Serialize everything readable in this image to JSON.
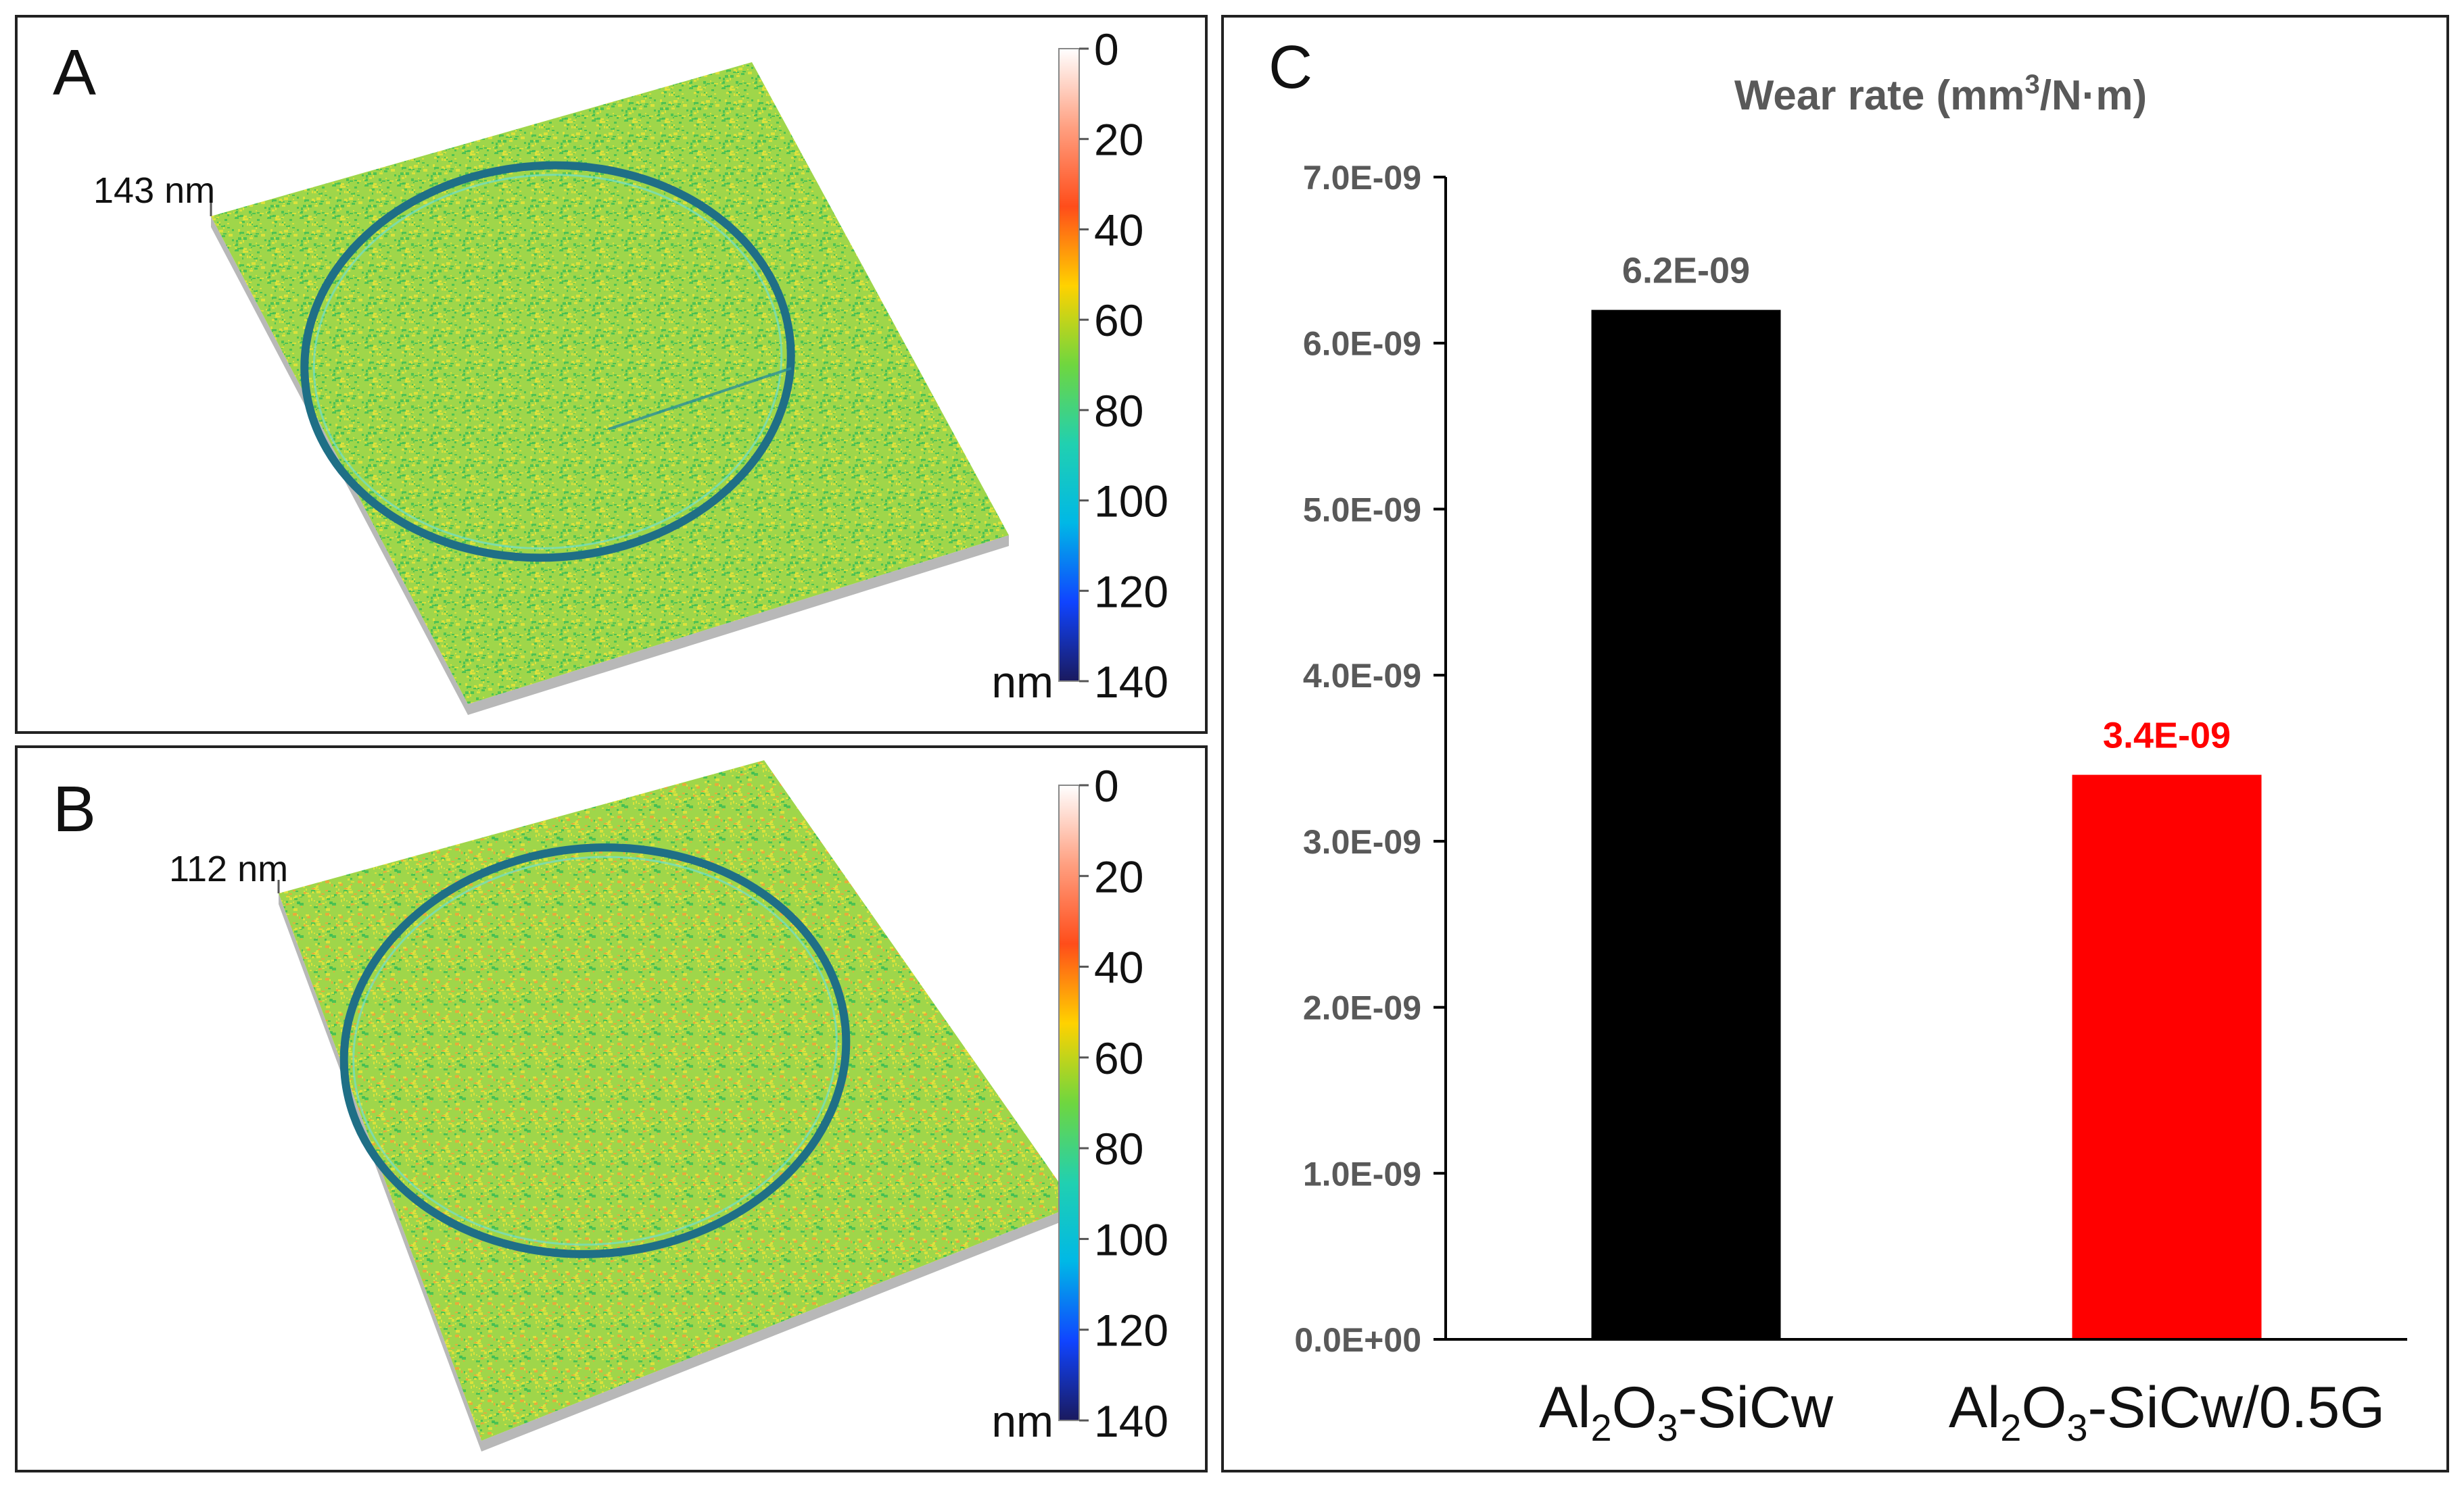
{
  "panels": {
    "a": {
      "letter": "A",
      "height_label": "143 nm"
    },
    "b": {
      "letter": "B",
      "height_label": "112 nm"
    },
    "colorbar": {
      "ticks": [
        "0",
        "20",
        "40",
        "60",
        "80",
        "100",
        "120",
        "140"
      ],
      "unit": "nm",
      "colors": [
        "#ffffff",
        "#ff9f80",
        "#ff4d1a",
        "#ffd200",
        "#6fd63f",
        "#21d0b0",
        "#00b8e6",
        "#1044ff",
        "#1a1a5e"
      ]
    },
    "surface_colors": {
      "base": "#9fd64a",
      "yellow": "#e6e33a",
      "green": "#3fbf55",
      "orange": "#f2a33a",
      "ring": "#1f6f86"
    }
  },
  "chart_data": {
    "type": "bar",
    "panel_letter": "C",
    "title_pre": "Wear rate (mm",
    "title_sup": "3",
    "title_post": "/N·m)",
    "ylim": [
      0,
      7e-09
    ],
    "yticks": [
      0,
      1e-09,
      2e-09,
      3e-09,
      4e-09,
      5e-09,
      6e-09,
      7e-09
    ],
    "ytick_labels": [
      "0.0E+00",
      "1.0E-09",
      "2.0E-09",
      "3.0E-09",
      "4.0E-09",
      "5.0E-09",
      "6.0E-09",
      "7.0E-09"
    ],
    "categories": [
      {
        "pre": "Al",
        "sub1": "2",
        "mid": "O",
        "sub2": "3",
        "post": "-SiCw"
      },
      {
        "pre": "Al",
        "sub1": "2",
        "mid": "O",
        "sub2": "3",
        "post": "-SiCw/0.5G"
      }
    ],
    "values": [
      6.2e-09,
      3.4e-09
    ],
    "data_labels": [
      "6.2E-09",
      "3.4E-09"
    ],
    "bar_colors": [
      "#000000",
      "#ff0000"
    ],
    "label_colors": [
      "#595959",
      "#ff0000"
    ]
  }
}
